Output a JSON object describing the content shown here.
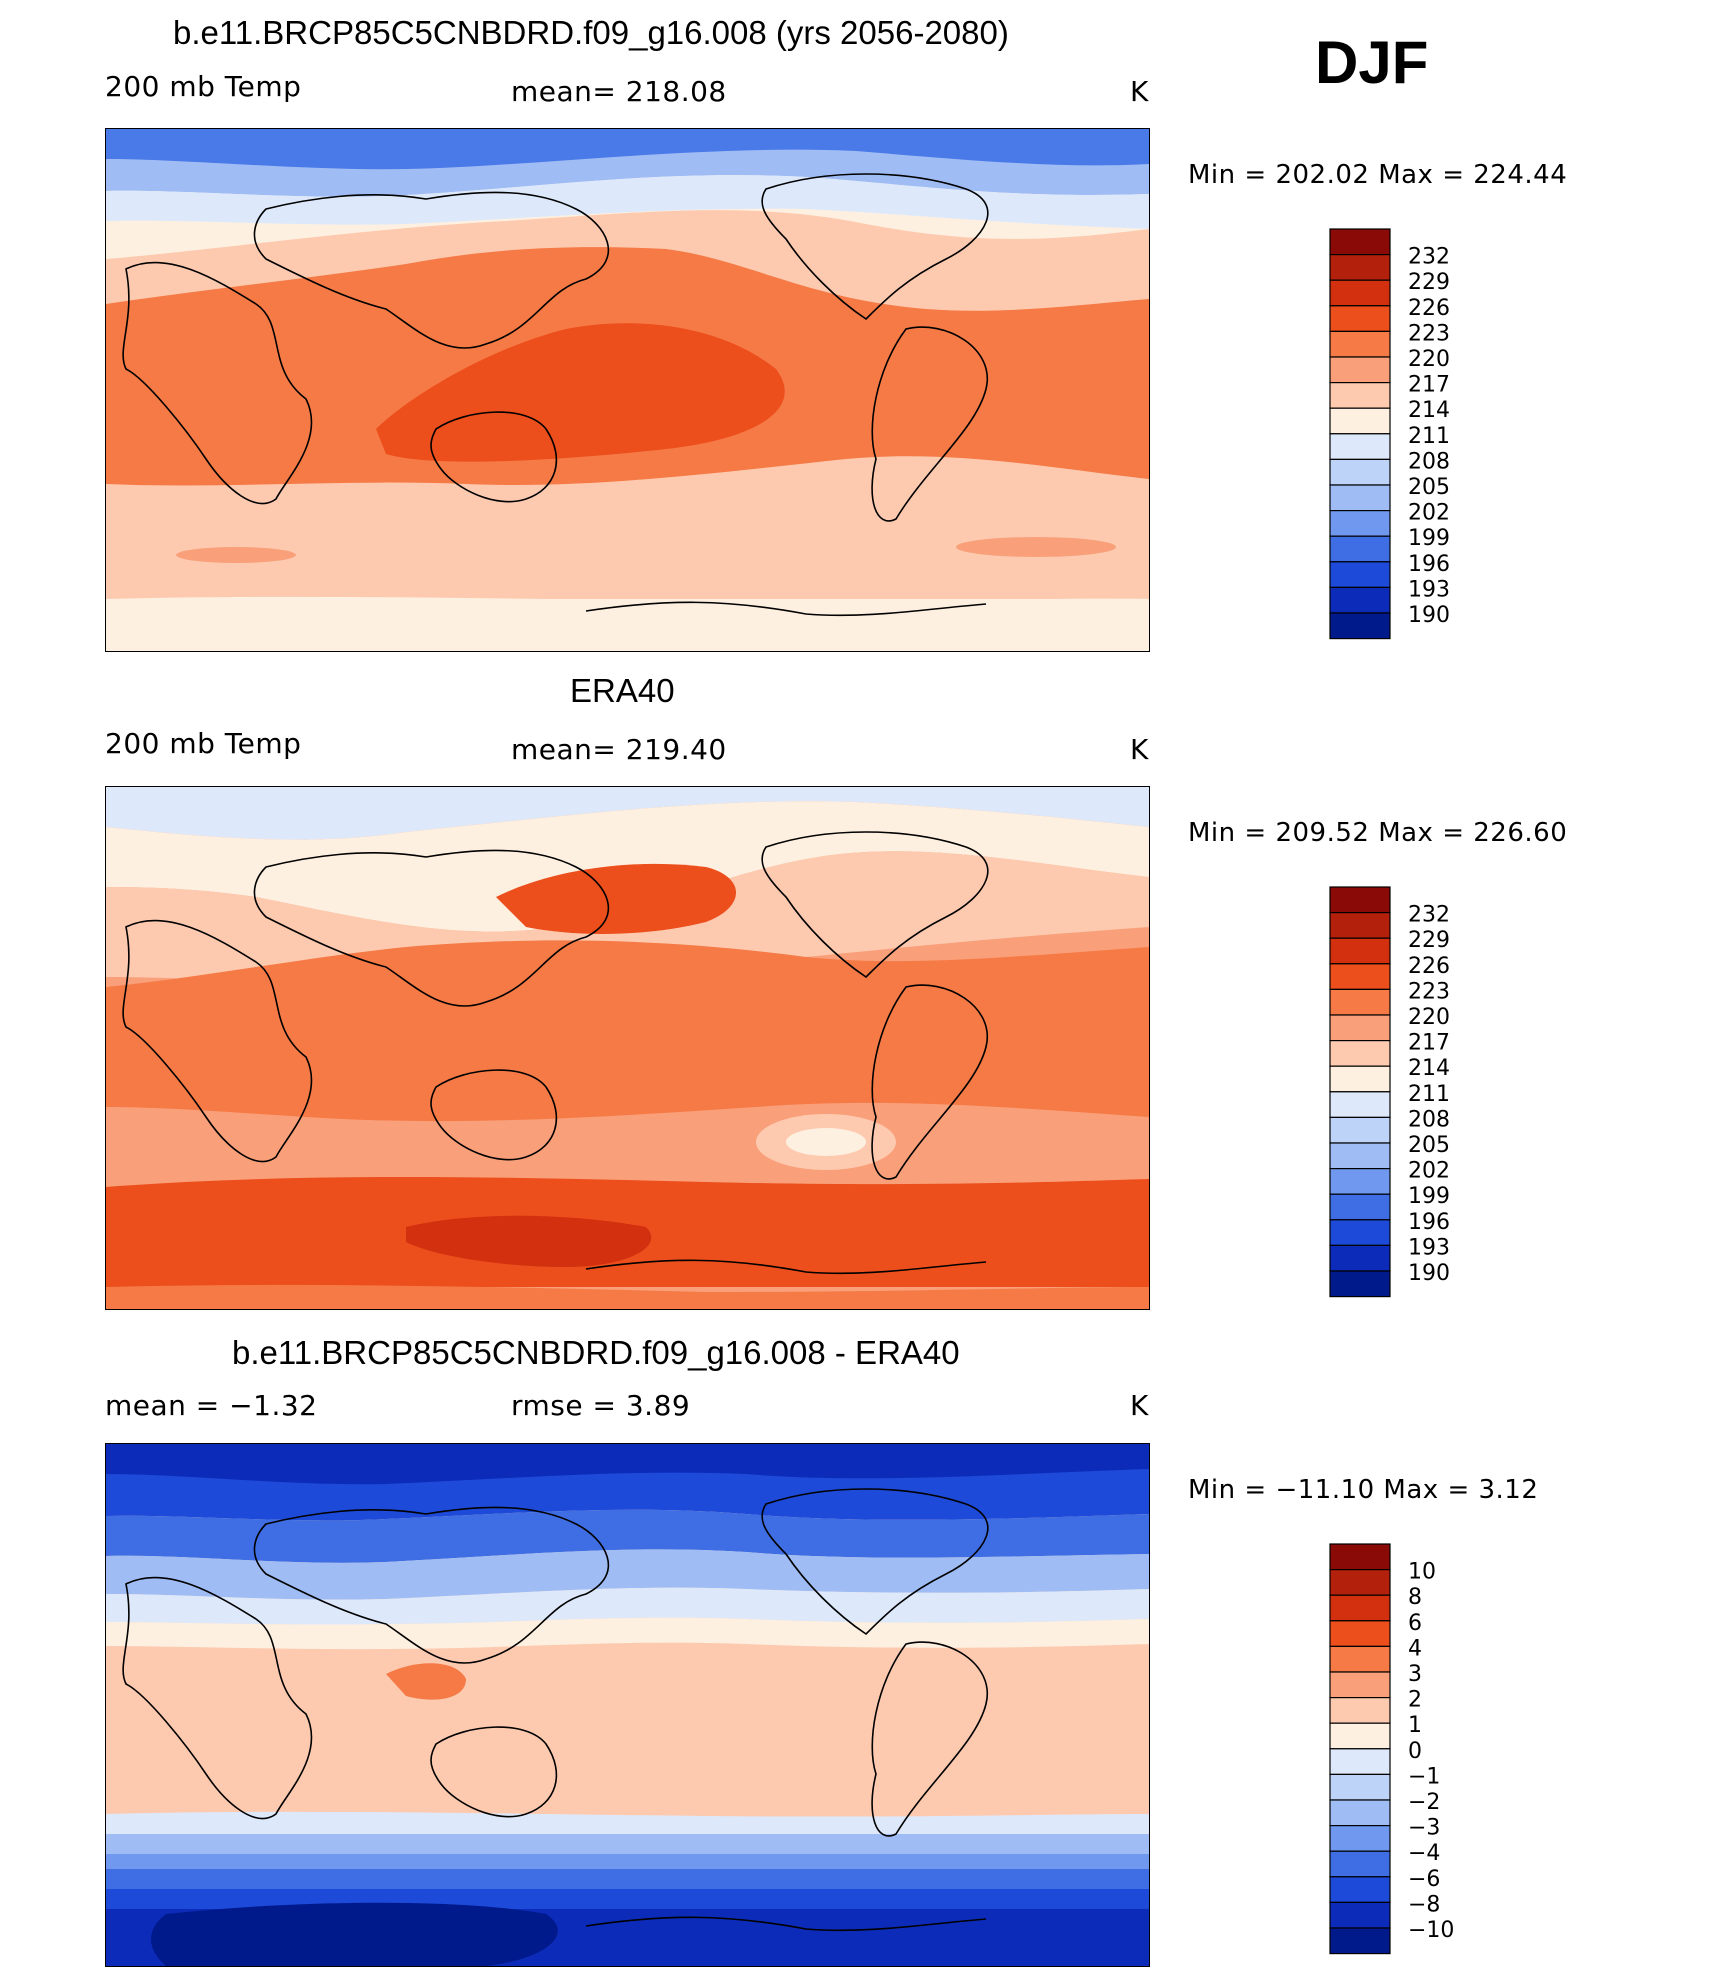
{
  "season": "DJF",
  "panels": [
    {
      "title": "b.e11.BRCP85C5CNBDRD.f09_g16.008 (yrs 2056-2080)",
      "left_label": "200 mb Temp",
      "center_label": "mean=  218.08",
      "right_label": "K",
      "minmax": "Min  =  202.02  Max  =  224.44",
      "legend_labels": [
        "232",
        "229",
        "226",
        "223",
        "220",
        "217",
        "214",
        "211",
        "208",
        "205",
        "202",
        "199",
        "196",
        "193",
        "190"
      ]
    },
    {
      "title": "ERA40",
      "left_label": "200 mb Temp",
      "center_label": "mean=  219.40",
      "right_label": "K",
      "minmax": "Min  =  209.52  Max  =  226.60",
      "legend_labels": [
        "232",
        "229",
        "226",
        "223",
        "220",
        "217",
        "214",
        "211",
        "208",
        "205",
        "202",
        "199",
        "196",
        "193",
        "190"
      ]
    },
    {
      "title": "b.e11.BRCP85C5CNBDRD.f09_g16.008 - ERA40",
      "left_label": "mean  =    −1.32",
      "center_label": "rmse  =     3.89",
      "right_label": "K",
      "minmax": "Min  =  −11.10  Max  =      3.12",
      "legend_labels": [
        "10",
        "8",
        "6",
        "4",
        "3",
        "2",
        "1",
        "0",
        "−1",
        "−2",
        "−3",
        "−4",
        "−6",
        "−8",
        "−10"
      ]
    }
  ],
  "colorbar_colors": [
    "#8a0a07",
    "#b3200c",
    "#d33010",
    "#ec4e1c",
    "#f57a46",
    "#f9a07a",
    "#fdcab0",
    "#fef0e0",
    "#dde9fb",
    "#bed3f8",
    "#9fbdf4",
    "#6f98ee",
    "#3f6ee4",
    "#1d4ad9",
    "#0c2bb8",
    "#001a8c"
  ],
  "map_legend_ticks": {
    "panel_1": {
      "top_band": "#4a79e8",
      "arctic": "#9fbdf4",
      "midlat_n": "#fef0e0",
      "subtrop_n": "#fdcab0",
      "tropics": "#f57a46",
      "warm_pool": "#ec4e1c",
      "subtrop_s": "#f9a07a",
      "south": "#fdcab0",
      "antarctic": "#fef0e0"
    },
    "panel_2": {
      "arctic": "#dde9fb",
      "midlat_n": "#fdcab0",
      "kuroshio": "#ec4e1c",
      "tropics": "#f57a46",
      "south_pacific_cool": "#fdcab0",
      "southern_warm": "#ec4e1c",
      "antarctic_hot": "#d33010"
    },
    "panel_3": {
      "arctic": "#1d4ad9",
      "arctic_deep": "#0c2bb8",
      "midlat_n": "#bed3f8",
      "tropics": "#fdcab0",
      "maritime": "#f57a46",
      "south_mid": "#6f98ee",
      "antarctic": "#0c2bb8",
      "antarctic_deep": "#001a8c"
    }
  }
}
